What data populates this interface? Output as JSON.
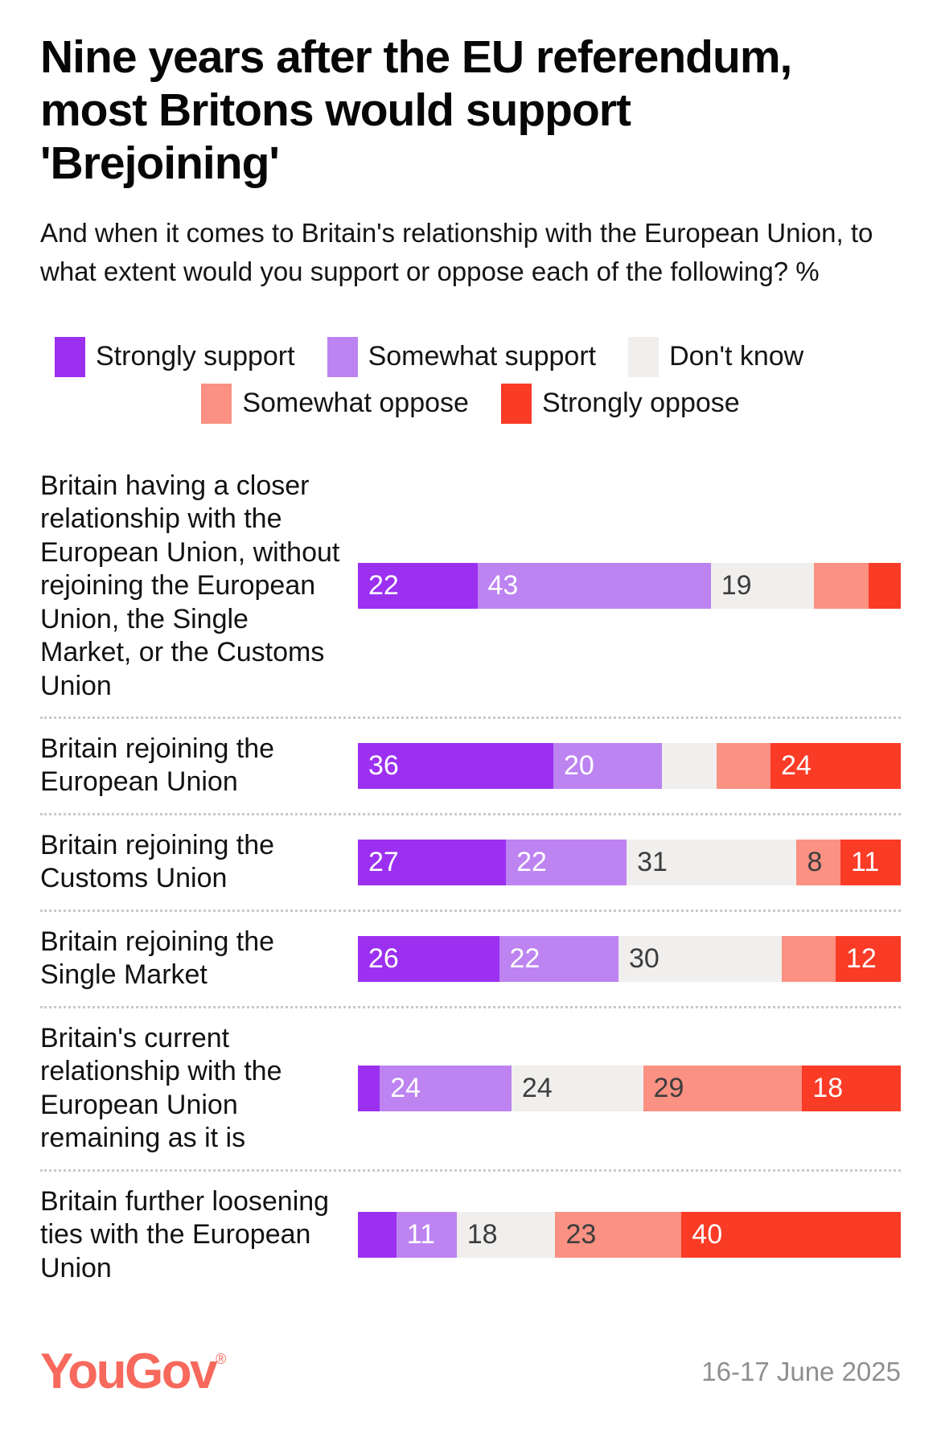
{
  "title": "Nine years after the EU referendum, most Britons would support 'Brejoining'",
  "subtitle": "And when it comes to Britain's relationship with the European Union, to what extent would you support or oppose each of the following? %",
  "colors": {
    "strongly_support": "#9b30f1",
    "somewhat_support": "#bc83f1",
    "dont_know": "#f0efed",
    "somewhat_oppose": "#fa9183",
    "strongly_oppose": "#fa3b26",
    "dark_value_text": "#3d3d3d",
    "light_value_text": "#ffffff",
    "separator": "#c9c9c9",
    "logo": "#f7695c",
    "date_text": "#8f8f8f"
  },
  "legend": {
    "rows": [
      [
        {
          "key": "strongly_support",
          "label": "Strongly support"
        },
        {
          "key": "somewhat_support",
          "label": "Somewhat support"
        },
        {
          "key": "dont_know",
          "label": "Don't know"
        }
      ],
      [
        {
          "key": "somewhat_oppose",
          "label": "Somewhat oppose"
        },
        {
          "key": "strongly_oppose",
          "label": "Strongly oppose"
        }
      ]
    ]
  },
  "chart_data": {
    "type": "bar",
    "variant": "horizontal-stacked",
    "unit": "%",
    "xlim": [
      0,
      100
    ],
    "legend_position": "top",
    "series_keys": [
      "strongly_support",
      "somewhat_support",
      "dont_know",
      "somewhat_oppose",
      "strongly_oppose"
    ],
    "series_names": [
      "Strongly support",
      "Somewhat support",
      "Don't know",
      "Somewhat oppose",
      "Strongly oppose"
    ],
    "rows": [
      {
        "category": "Britain having a closer relationship with the European Union, without rejoining the European Union, the Single Market, or the Customs Union",
        "values": [
          22,
          43,
          19,
          10,
          6
        ],
        "segment_labels": [
          "22",
          "43",
          "19",
          "",
          ""
        ]
      },
      {
        "category": "Britain rejoining the European Union",
        "values": [
          36,
          20,
          10,
          10,
          24
        ],
        "segment_labels": [
          "36",
          "20",
          "",
          "",
          "24"
        ]
      },
      {
        "category": "Britain rejoining the Customs Union",
        "values": [
          27,
          22,
          31,
          8,
          11
        ],
        "segment_labels": [
          "27",
          "22",
          "31",
          "8",
          "11"
        ]
      },
      {
        "category": "Britain rejoining the Single Market",
        "values": [
          26,
          22,
          30,
          10,
          12
        ],
        "segment_labels": [
          "26",
          "22",
          "30",
          "",
          "12"
        ]
      },
      {
        "category": "Britain's current relationship with the European Union remaining as it is",
        "values": [
          4,
          24,
          24,
          29,
          18
        ],
        "segment_labels": [
          "",
          "24",
          "24",
          "29",
          "18"
        ]
      },
      {
        "category": "Britain further loosening ties with the European Union",
        "values": [
          7,
          11,
          18,
          23,
          40
        ],
        "segment_labels": [
          "",
          "11",
          "18",
          "23",
          "40"
        ]
      }
    ]
  },
  "footer": {
    "logo_text": "YouGov",
    "registered_mark": "®",
    "date": "16-17 June 2025"
  }
}
